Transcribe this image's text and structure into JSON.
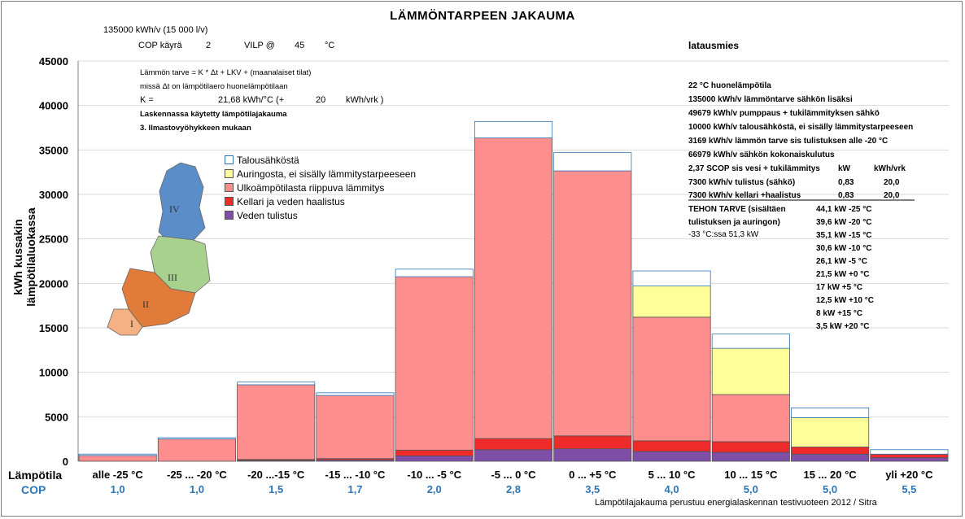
{
  "chart_data": {
    "type": "bar",
    "stacked": true,
    "title": "LÄMMÖNTARPEEN JAKAUMA",
    "ylabel": "kWh kussakin lämpötilaluokassa",
    "xlabel": "Lämpötila",
    "cop_label": "COP",
    "ylim": [
      0,
      45000
    ],
    "yticks": [
      "0",
      "5000",
      "10000",
      "15000",
      "20000",
      "25000",
      "30000",
      "35000",
      "40000",
      "45000"
    ],
    "grid": true,
    "categories": [
      "alle -25 °C",
      "-25 ... -20 °C",
      "-20 ...-15 °C",
      "-15 ... -10 °C",
      "-10 ... -5 °C",
      "-5 ... 0 °C",
      "0 ... +5 °C",
      "5 ... 10 °C",
      "10 ... 15 °C",
      "15 ... 20 °C",
      "yli +20 °C"
    ],
    "cop": [
      "1,0",
      "1,0",
      "1,5",
      "1,7",
      "2,0",
      "2,8",
      "3,5",
      "4,0",
      "5,0",
      "5,0",
      "5,5"
    ],
    "series": [
      {
        "name": "Veden tulistus",
        "color": "#7f4fa8",
        "values": [
          0,
          0,
          100,
          150,
          600,
          1300,
          1400,
          1100,
          1000,
          800,
          400
        ]
      },
      {
        "name": "Kellari ja veden haalistus",
        "color": "#ee2a2a",
        "values": [
          0,
          0,
          100,
          150,
          650,
          1250,
          1450,
          1200,
          1200,
          800,
          400
        ]
      },
      {
        "name": "Ulkoämpötilasta riippuva lämmitys",
        "color": "#ff8f8f",
        "values": [
          650,
          2500,
          8400,
          7100,
          19500,
          33800,
          29800,
          13900,
          5300,
          0,
          0
        ]
      },
      {
        "name": "Auringosta, ei sisälly lämmitystarpeeseen",
        "color": "#ffff99",
        "values": [
          0,
          0,
          0,
          0,
          0,
          0,
          0,
          3500,
          5200,
          3300,
          0
        ]
      },
      {
        "name": "Talousähköstä",
        "color": "#ffffff",
        "values": [
          150,
          150,
          300,
          300,
          850,
          1850,
          2050,
          1700,
          1600,
          1100,
          500
        ]
      }
    ],
    "legend_position": "left"
  },
  "header": {
    "line1": "135000  kWh/v (15 000 l/v)",
    "cop_label": "COP käyrä",
    "cop_value": "2",
    "vilp_label": "VILP @",
    "vilp_value": "45",
    "vilp_unit": "°C",
    "author": "latausmies"
  },
  "formula": {
    "line1": "Lämmön tarve =  K * Δt + LKV + (maanalaiset tilat)",
    "line2": "missä Δt on lämpötilaero huonelämpötilaan",
    "k_label": "K =",
    "k_value": "21,68  kWh/°C (+",
    "k_extra": "20",
    "k_unit": "kWh/vrk )",
    "line4": "Laskennassa käytetty lämpötilajakauma",
    "line5": "3.   Ilmastovyöhykkeen mukaan"
  },
  "info": [
    "22  °C huonelämpötila",
    "135000  kWh/v lämmöntarve sähkön lisäksi",
    "49679  kWh/v pumppaus + tukilämmityksen sähkö",
    "10000  kWh/v   talousähköstä, ei sisälly lämmitystarpeeseen",
    "3169   kWh/v    lämmön tarve sis tulistuksen alle -20 °C",
    "66979  kWh/v  sähkön kokonaiskulutus"
  ],
  "table": {
    "head": [
      "2,37 SCOP sis vesi + tukilämmitys",
      "kW",
      "kWh/vrk"
    ],
    "row1": [
      "7300  kWh/v  tulistus (sähkö)",
      "0,83",
      "20,0"
    ],
    "row2": [
      "7300  kWh/v  kellari +haalistus",
      "0,83",
      "20,0"
    ]
  },
  "power": {
    "title1": "TEHON TARVE (sisältäen",
    "title2": "tulistuksen ja auringon)",
    "extreme": "-33  °C:ssa      51,3       kW",
    "values": [
      "44,1  kW  -25 °C",
      "39,6  kW  -20 °C",
      "35,1  kW  -15 °C",
      "30,6  kW  -10 °C",
      "26,1  kW  -5  °C",
      "21,5  kW  +0  °C",
      "17  kW  +5  °C",
      "12,5  kW  +10 °C",
      "8  kW  +15 °C",
      "3,5  kW  +20 °C"
    ]
  },
  "map_regions": [
    "I",
    "II",
    "III",
    "IV"
  ],
  "source": "Lämpötilajakauma perustuu energialaskennan testivuoteen 2012 / Sitra"
}
